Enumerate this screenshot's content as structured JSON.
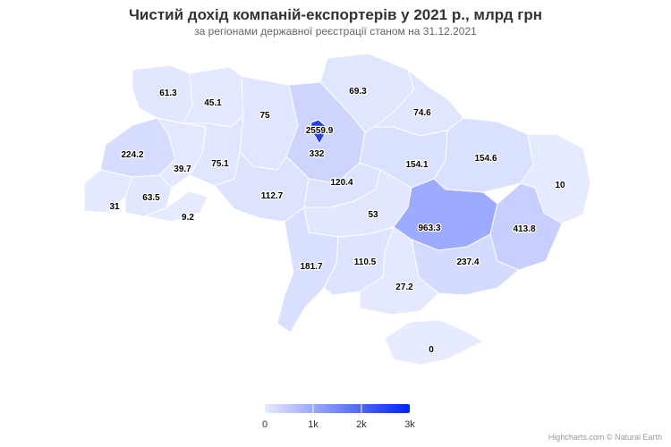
{
  "chart_data": {
    "type": "map",
    "title": "Чистий дохід компаній-експортерів у 2021 р., млрд грн",
    "subtitle": "за регіонами державної реєстрації станом на 31.12.2021",
    "color_axis": {
      "min": 0,
      "max": 3000,
      "min_color": "#E6EBFF",
      "max_color": "#0022FF",
      "ticks": [
        "0",
        "1k",
        "2k",
        "3k"
      ]
    },
    "regions": [
      {
        "name": "Волинська",
        "value": 61.3
      },
      {
        "name": "Рівненська",
        "value": 45.1
      },
      {
        "name": "Житомирська",
        "value": 75
      },
      {
        "name": "Київська",
        "value": 332
      },
      {
        "name": "м. Київ",
        "value": 2559.9
      },
      {
        "name": "Чернігівська",
        "value": 69.3
      },
      {
        "name": "Сумська",
        "value": 74.6
      },
      {
        "name": "Львівська",
        "value": 224.2
      },
      {
        "name": "Тернопільська",
        "value": 39.7
      },
      {
        "name": "Хмельницька",
        "value": 75.1
      },
      {
        "name": "Закарпатська",
        "value": 31
      },
      {
        "name": "Івано-Франківська",
        "value": 63.5
      },
      {
        "name": "Чернівецька",
        "value": 9.2
      },
      {
        "name": "Вінницька",
        "value": 112.7
      },
      {
        "name": "Черкаська",
        "value": 120.4
      },
      {
        "name": "Полтавська",
        "value": 154.1
      },
      {
        "name": "Харківська",
        "value": 154.6
      },
      {
        "name": "Луганська",
        "value": 10
      },
      {
        "name": "Кіровоградська",
        "value": 53
      },
      {
        "name": "Дніпропетровська",
        "value": 963.3
      },
      {
        "name": "Донецька",
        "value": 413.8
      },
      {
        "name": "Одеська",
        "value": 181.7
      },
      {
        "name": "Миколаївська",
        "value": 110.5
      },
      {
        "name": "Запорізька",
        "value": 237.4
      },
      {
        "name": "Херсонська",
        "value": 27.2
      },
      {
        "name": "АР Крим",
        "value": 0
      }
    ]
  },
  "credits": "Highcharts.com © Natural Earth"
}
